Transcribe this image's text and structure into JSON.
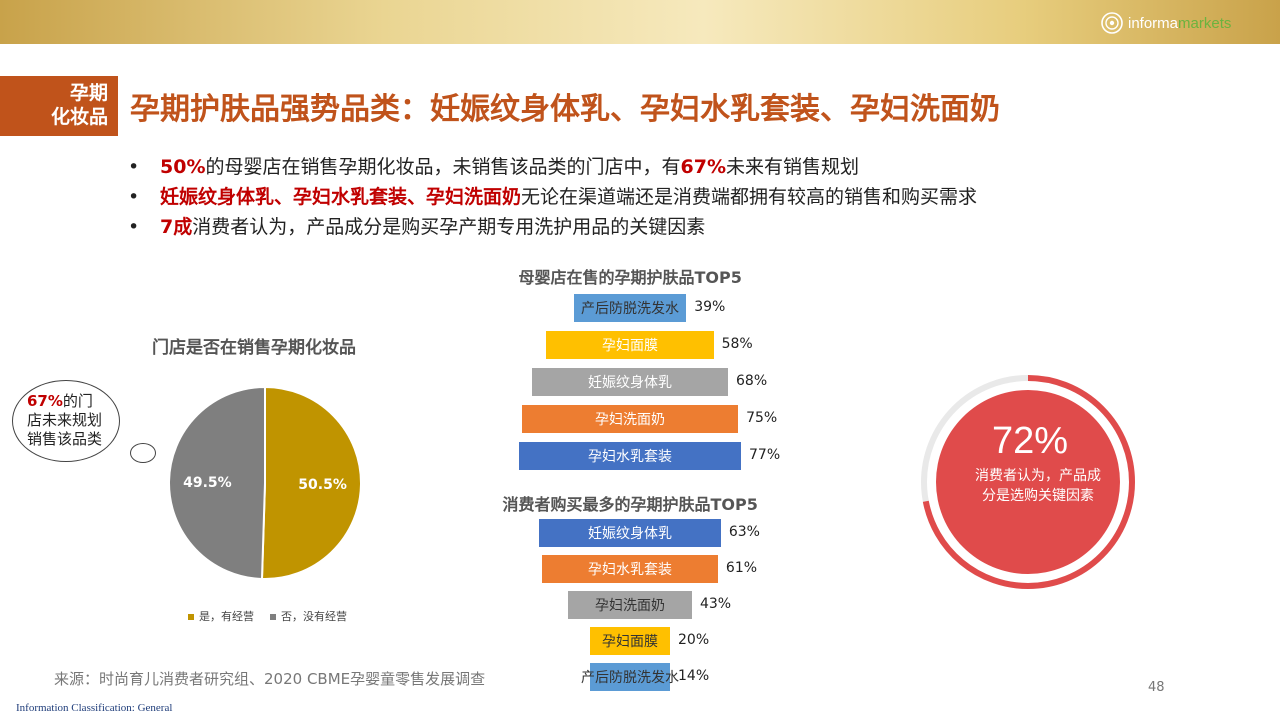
{
  "header": {
    "logo_text_main": "informa",
    "logo_text_accent": "markets",
    "section_tag_line1": "孕期",
    "section_tag_line2": "化妆品",
    "title": "孕期护肤品强势品类：妊娠纹身体乳、孕妇水乳套装、孕妇洗面奶"
  },
  "bullets": [
    {
      "hl": "50%",
      "t1": "的母婴店在销售孕期化妆品，未销售该品类的门店中，有",
      "hl2": "67%",
      "t2": "未来有销售规划"
    },
    {
      "hl": "妊娠纹身体乳、孕妇水乳套装、孕妇洗面奶",
      "t1": "无论在渠道端还是消费端都拥有较高的销售和购买需求",
      "hl2": "",
      "t2": ""
    },
    {
      "hl": "7成",
      "t1": "消费者认为，产品成分是购买孕产期专用洗护用品的关键因素",
      "hl2": "",
      "t2": ""
    }
  ],
  "callout": {
    "hl": "67%",
    "line1": "的门",
    "line2": "店未来规划",
    "line3": "销售该品类"
  },
  "ring": {
    "value": "72%",
    "desc_line1": "消费者认为，产品成",
    "desc_line2": "分是选购关键因素"
  },
  "colors": {
    "brand": "#c0531b",
    "highlight": "#c00000",
    "pie_yes": "#c09400",
    "pie_no": "#7f7f7f",
    "ring": "#e04b4b"
  },
  "chart_data": [
    {
      "type": "pie",
      "title": "门店是否在销售孕期化妆品",
      "slices": [
        {
          "name": "是，有经营",
          "value": 50.5,
          "label": "50.5%",
          "color": "#c09400"
        },
        {
          "name": "否，没有经营",
          "value": 49.5,
          "label": "49.5%",
          "color": "#7f7f7f"
        }
      ],
      "legend": "bottom"
    },
    {
      "type": "bar",
      "title": "母婴店在售的孕期护肤品TOP5",
      "categories": [
        "产后防脱洗发水",
        "孕妇面膜",
        "妊娠纹身体乳",
        "孕妇洗面奶",
        "孕妇水乳套装"
      ],
      "values": [
        39,
        58,
        68,
        75,
        77
      ],
      "labels": [
        "39%",
        "58%",
        "68%",
        "75%",
        "77%"
      ],
      "colors": [
        "#5b9bd5",
        "#ffc000",
        "#a5a5a5",
        "#ed7d31",
        "#4472c4"
      ]
    },
    {
      "type": "bar",
      "title": "消费者购买最多的孕期护肤品TOP5",
      "categories": [
        "妊娠纹身体乳",
        "孕妇水乳套装",
        "孕妇洗面奶",
        "孕妇面膜",
        "产后防脱洗发水"
      ],
      "values": [
        63,
        61,
        43,
        20,
        14
      ],
      "labels": [
        "63%",
        "61%",
        "43%",
        "20%",
        "14%"
      ],
      "colors": [
        "#4472c4",
        "#ed7d31",
        "#a5a5a5",
        "#ffc000",
        "#5b9bd5"
      ]
    },
    {
      "type": "pie",
      "title": "",
      "slices": [
        {
          "name": "消费者认为，产品成分是选购关键因素",
          "value": 72,
          "label": "72%"
        }
      ]
    }
  ],
  "footer": {
    "source": "来源：时尚育儿消费者研究组、2020 CBME孕婴童零售发展调查",
    "page_number": "48",
    "classification": "Information Classification: General"
  }
}
